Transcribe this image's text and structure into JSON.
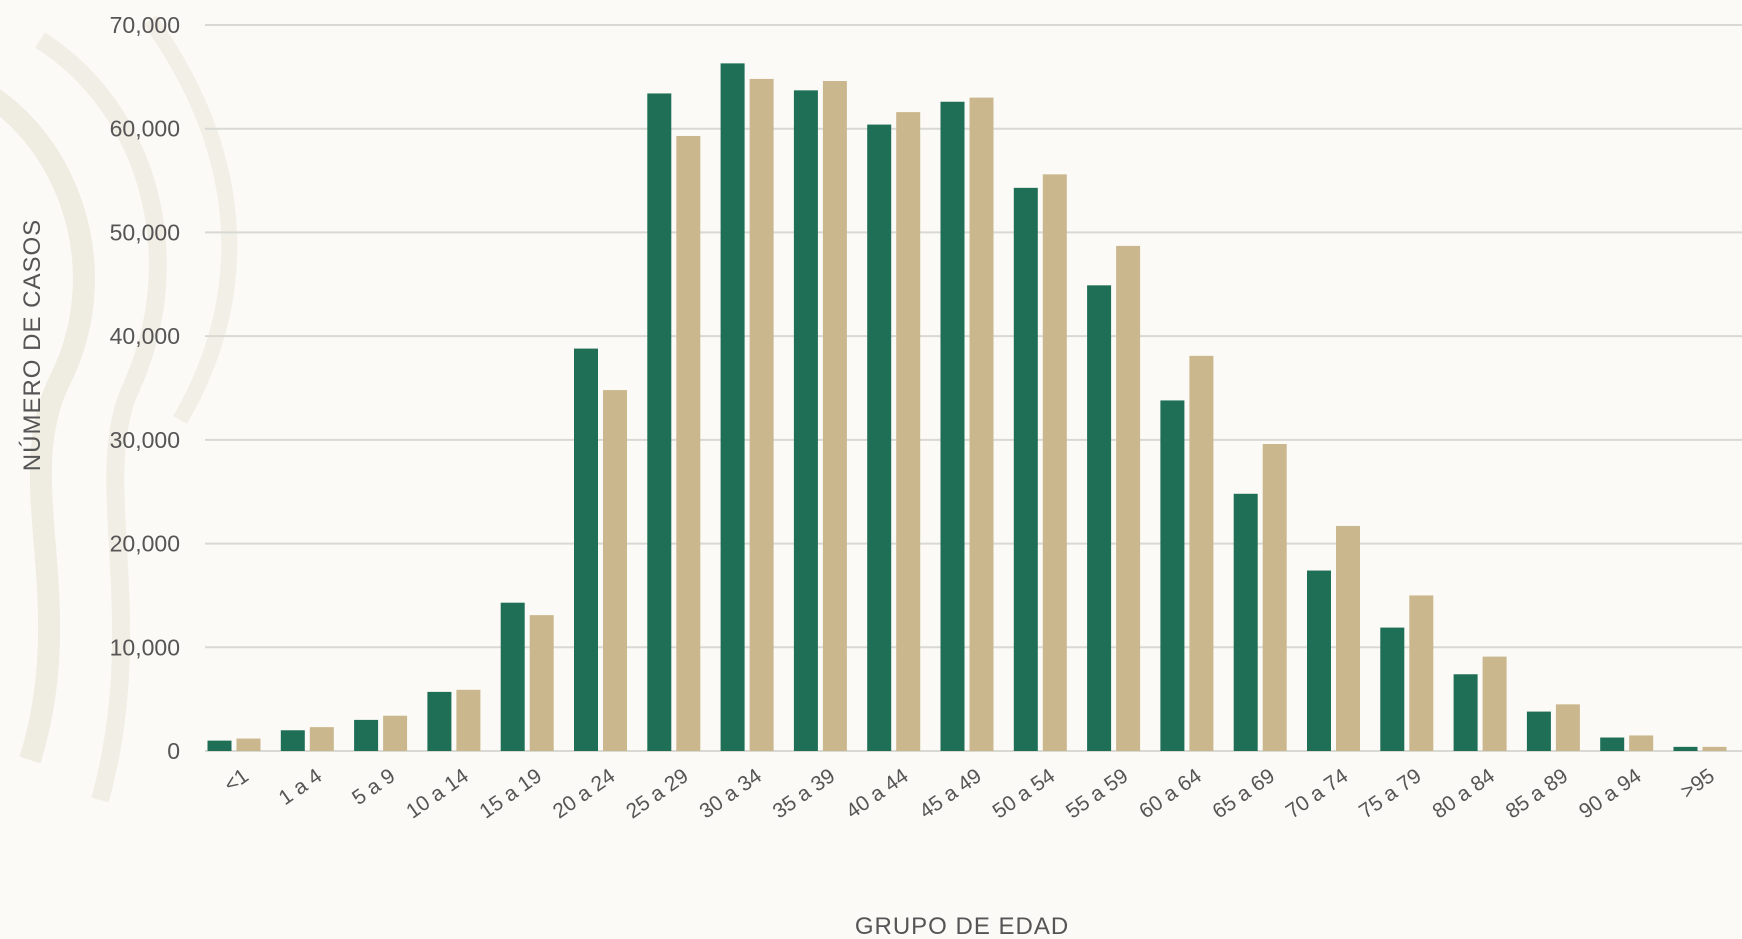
{
  "chart_data": {
    "type": "bar",
    "title": "",
    "xlabel": "GRUPO DE EDAD",
    "ylabel": "NÚMERO DE CASOS",
    "ylim": [
      0,
      70000
    ],
    "yticks": [
      0,
      10000,
      20000,
      30000,
      40000,
      50000,
      60000,
      70000
    ],
    "ytick_labels": [
      "0",
      "10,000",
      "20,000",
      "30,000",
      "40,000",
      "50,000",
      "60,000",
      "70,000"
    ],
    "grid": true,
    "legend": "none",
    "categories": [
      "<1",
      "1 a 4",
      "5 a 9",
      "10 a 14",
      "15 a 19",
      "20 a 24",
      "25 a 29",
      "30 a 34",
      "35 a 39",
      "40 a 44",
      "45 a 49",
      "50 a 54",
      "55 a 59",
      "60 a 64",
      "65 a 69",
      "70 a 74",
      "75 a 79",
      "80 a 84",
      "85 a 89",
      "90 a 94",
      ">95"
    ],
    "series": [
      {
        "color": "#1f6f57",
        "values": [
          1000,
          2000,
          3000,
          5700,
          14300,
          38800,
          63400,
          66300,
          63700,
          60400,
          62600,
          54300,
          44900,
          33800,
          24800,
          17400,
          11900,
          7400,
          3800,
          1300,
          400
        ]
      },
      {
        "color": "#cbb78d",
        "values": [
          1200,
          2300,
          3400,
          5900,
          13100,
          34800,
          59300,
          64800,
          64600,
          61600,
          63000,
          55600,
          48700,
          38100,
          29600,
          21700,
          15000,
          9100,
          4500,
          1500,
          400
        ]
      }
    ]
  }
}
